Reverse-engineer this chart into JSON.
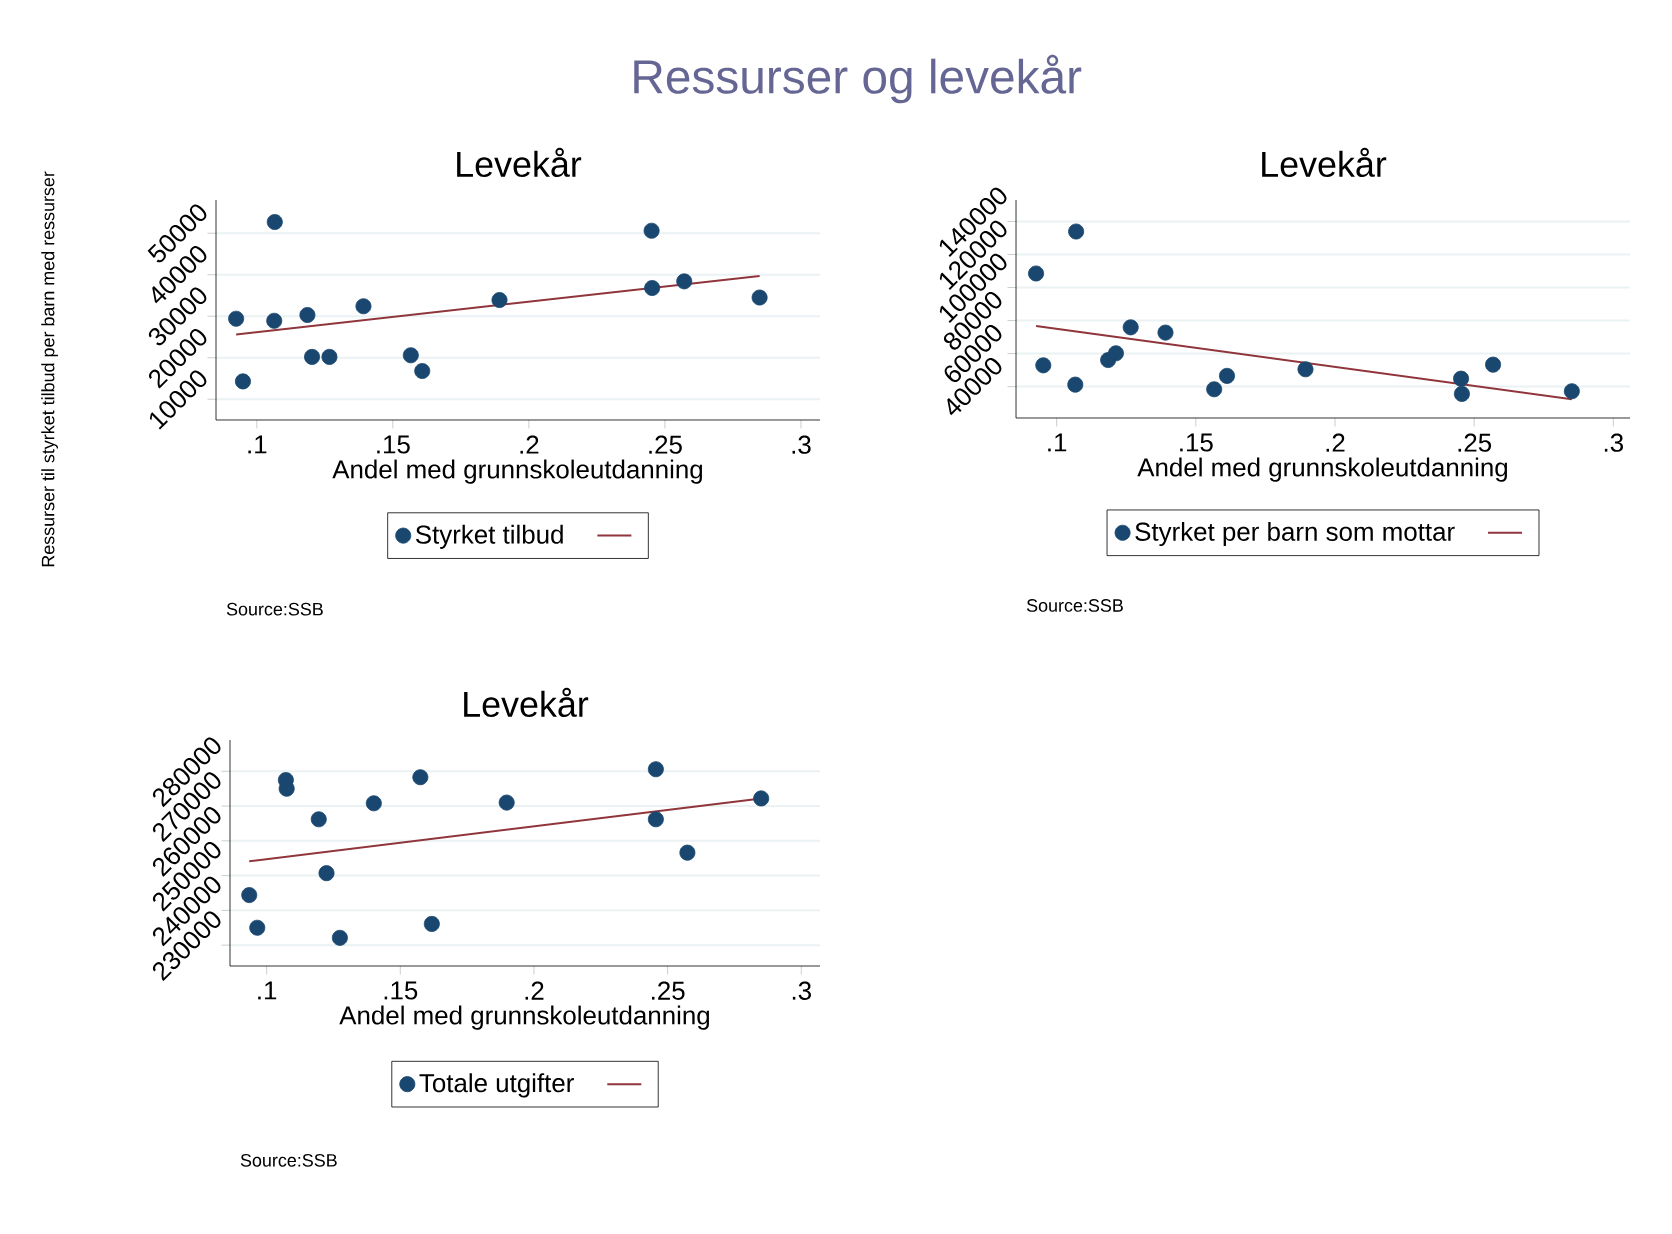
{
  "chart_data": [
    {
      "type": "scatter",
      "title": "Levekår",
      "xlabel": "Andel med grunnskoleutdanning",
      "ylabel": "Ressurser til styrket tilbud per barn med ressurser",
      "annotations": [
        "Ressurser og levekår",
        "Source:SSB"
      ],
      "grid": "y",
      "legend": "bottom",
      "xlim": [
        0.085,
        0.307
      ],
      "ylim": [
        5000,
        58000
      ],
      "xticks": [
        {
          "value": 0.1,
          "label": ".1"
        },
        {
          "value": 0.15,
          "label": ".15"
        },
        {
          "value": 0.2,
          "label": ".2"
        },
        {
          "value": 0.25,
          "label": ".25"
        },
        {
          "value": 0.3,
          "label": ".3"
        }
      ],
      "yticks": [
        10000,
        20000,
        30000,
        40000,
        50000
      ],
      "series": [
        {
          "marker": "circle",
          "name": "Styrket tilbud",
          "color": "#1a476f",
          "x": [
            0.0924,
            0.0949,
            0.1066,
            0.1064,
            0.1186,
            0.1203,
            0.1267,
            0.1392,
            0.1566,
            0.1608,
            0.1892,
            0.2451,
            0.2453,
            0.2571,
            0.2848
          ],
          "values": [
            29400,
            14300,
            52700,
            28900,
            30300,
            20200,
            20200,
            32400,
            20600,
            16800,
            33900,
            50600,
            36800,
            38400,
            34500
          ]
        },
        {
          "type": "line",
          "marker": "none",
          "color": "#90353b",
          "x": [
            0.0924,
            0.2848
          ],
          "values": [
            25600,
            39700
          ]
        }
      ]
    },
    {
      "type": "scatter",
      "title": "Levekår",
      "xlabel": "Andel med grunnskoleutdanning",
      "annotations": [
        "Source:SSB"
      ],
      "grid": "y",
      "legend": "bottom",
      "xlim": [
        0.0854,
        0.306
      ],
      "ylim": [
        21000,
        153000
      ],
      "xticks": [
        {
          "value": 0.1,
          "label": ".1"
        },
        {
          "value": 0.15,
          "label": ".15"
        },
        {
          "value": 0.2,
          "label": ".2"
        },
        {
          "value": 0.25,
          "label": ".25"
        },
        {
          "value": 0.3,
          "label": ".3"
        }
      ],
      "yticks": [
        40000,
        60000,
        80000,
        100000,
        120000,
        140000
      ],
      "series": [
        {
          "marker": "circle",
          "name": "Styrket per barn som mottar",
          "color": "#1a476f",
          "x": [
            0.0926,
            0.0952,
            0.107,
            0.1067,
            0.1185,
            0.1213,
            0.1266,
            0.1391,
            0.1566,
            0.1612,
            0.1894,
            0.2453,
            0.2456,
            0.2568,
            0.2851
          ],
          "values": [
            108500,
            52900,
            133900,
            41200,
            56100,
            60200,
            75900,
            72700,
            38400,
            46500,
            50500,
            44800,
            35600,
            53300,
            37200
          ]
        },
        {
          "type": "line",
          "marker": "none",
          "color": "#90353b",
          "x": [
            0.0926,
            0.2851
          ],
          "values": [
            76700,
            32300
          ]
        }
      ]
    },
    {
      "type": "scatter",
      "title": "Levekår",
      "xlabel": "Andel med grunnskoleutdanning",
      "annotations": [
        "Source:SSB"
      ],
      "grid": "y",
      "legend": "bottom",
      "xlim": [
        0.0863,
        0.307
      ],
      "ylim": [
        224000,
        289000
      ],
      "xticks": [
        {
          "value": 0.1,
          "label": ".1"
        },
        {
          "value": 0.15,
          "label": ".15"
        },
        {
          "value": 0.2,
          "label": ".2"
        },
        {
          "value": 0.25,
          "label": ".25"
        },
        {
          "value": 0.3,
          "label": ".3"
        }
      ],
      "yticks": [
        230000,
        240000,
        250000,
        260000,
        270000,
        280000
      ],
      "series": [
        {
          "marker": "circle",
          "name": "Totale utgifter",
          "color": "#1a476f",
          "x": [
            0.0935,
            0.0965,
            0.1072,
            0.1075,
            0.1195,
            0.1224,
            0.1274,
            0.1401,
            0.1575,
            0.1618,
            0.1898,
            0.2456,
            0.2456,
            0.2574,
            0.285
          ],
          "values": [
            244400,
            235000,
            277500,
            275000,
            266200,
            250700,
            232100,
            270800,
            278300,
            236100,
            271000,
            280600,
            266200,
            256600,
            272200
          ]
        },
        {
          "type": "line",
          "marker": "none",
          "color": "#90353b",
          "x": [
            0.0935,
            0.285
          ],
          "values": [
            254100,
            272200
          ]
        }
      ]
    }
  ]
}
